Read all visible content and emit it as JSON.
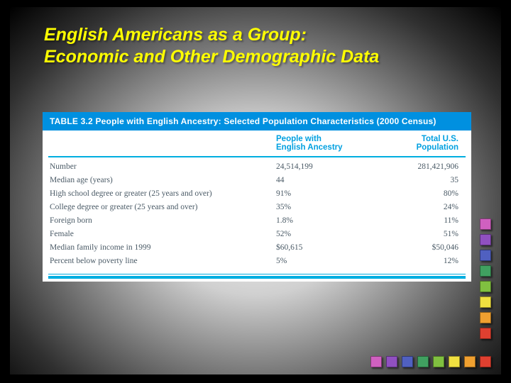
{
  "title": {
    "line1": "English Americans as a Group:",
    "line2": "Economic and Other Demographic Data"
  },
  "table": {
    "header_bg": "#0090e0",
    "header_text": "TABLE 3.2    People with English Ancestry: Selected Population Characteristics (2000 Census)",
    "col_header_color": "#00a0e0",
    "rule_color": "#00aee0",
    "columns": {
      "c1": "People with\nEnglish Ancestry",
      "c2": "Total U.S.\nPopulation"
    },
    "rows": [
      {
        "label": "Number",
        "c1": "24,514,199",
        "c2": "281,421,906"
      },
      {
        "label": "Median age (years)",
        "c1": "44",
        "c2": "35"
      },
      {
        "label": "High school degree or greater (25 years and over)",
        "c1": "91%",
        "c2": "80%"
      },
      {
        "label": "College degree or greater (25 years and over)",
        "c1": "35%",
        "c2": "24%"
      },
      {
        "label": "Foreign born",
        "c1": "1.8%",
        "c2": "11%"
      },
      {
        "label": "Female",
        "c1": "52%",
        "c2": "51%"
      },
      {
        "label": "Median family income in 1999",
        "c1": "$60,615",
        "c2": "$50,046"
      },
      {
        "label": "Percent below poverty line",
        "c1": "5%",
        "c2": "12%"
      }
    ]
  },
  "deco": {
    "vcolors": [
      "#d060c0",
      "#9050c0",
      "#5060c0",
      "#40a060",
      "#80c040",
      "#f0e040",
      "#f0a030",
      "#e04030"
    ],
    "hcolors": [
      "#d060c0",
      "#9050c0",
      "#5060c0",
      "#40a060",
      "#80c040",
      "#f0e040",
      "#f0a030",
      "#e04030"
    ]
  }
}
